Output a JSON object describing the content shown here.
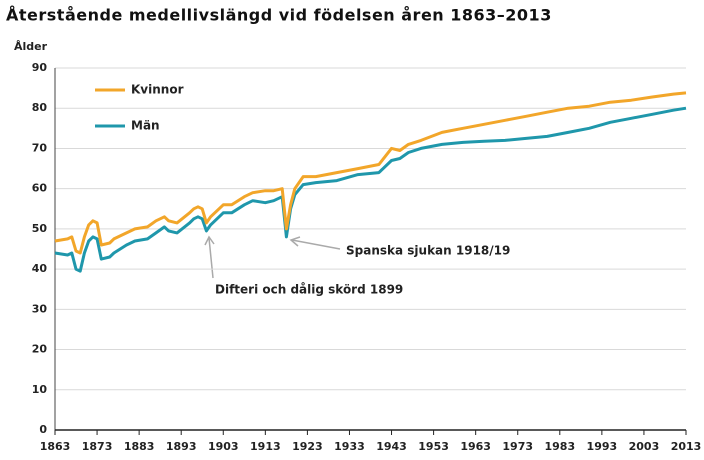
{
  "chart_data": {
    "type": "line",
    "title": "Återstående medellivslängd vid födelsen åren 1863–2013",
    "y_label": "Ålder",
    "x": [
      1863,
      1866,
      1867,
      1868,
      1869,
      1870,
      1871,
      1872,
      1873,
      1874,
      1876,
      1877,
      1880,
      1882,
      1885,
      1887,
      1889,
      1890,
      1892,
      1895,
      1896,
      1897,
      1898,
      1899,
      1900,
      1903,
      1905,
      1908,
      1910,
      1913,
      1915,
      1917,
      1918,
      1919,
      1920,
      1922,
      1925,
      1930,
      1935,
      1940,
      1943,
      1945,
      1947,
      1950,
      1955,
      1960,
      1965,
      1970,
      1975,
      1980,
      1985,
      1990,
      1995,
      2000,
      2005,
      2010,
      2013
    ],
    "series": [
      {
        "name": "Kvinnor",
        "color": "#f2a62a",
        "values": [
          47,
          47.5,
          48,
          44.5,
          44,
          48,
          51,
          52,
          51.5,
          46,
          46.5,
          47.5,
          49,
          50,
          50.5,
          52,
          53,
          52,
          51.5,
          54,
          55,
          55.5,
          55,
          51.5,
          53,
          56,
          56,
          58,
          59,
          59.5,
          59.5,
          60,
          50,
          56,
          60,
          63,
          63,
          64,
          65,
          66,
          70,
          69.5,
          71,
          72,
          74,
          75,
          76,
          77,
          78,
          79,
          80,
          80.5,
          81.5,
          82,
          82.8,
          83.5,
          83.8
        ]
      },
      {
        "name": "Män",
        "color": "#1f97ab",
        "values": [
          44,
          43.5,
          44,
          40,
          39.5,
          44,
          47,
          48,
          47.5,
          42.5,
          43,
          44,
          46,
          47,
          47.5,
          49,
          50.5,
          49.5,
          49,
          51.5,
          52.5,
          53,
          52.5,
          49.5,
          51,
          54,
          54,
          56,
          57,
          56.5,
          57,
          58,
          48,
          55,
          58.5,
          61,
          61.5,
          62,
          63.5,
          64,
          67,
          67.5,
          69,
          70,
          71,
          71.5,
          71.8,
          72,
          72.5,
          73,
          74,
          75,
          76.5,
          77.5,
          78.5,
          79.5,
          80
        ]
      }
    ],
    "annotations": [
      "Spanska sjukan 1918/19",
      "Difteri och dålig skörd 1899"
    ],
    "xlim": [
      1863,
      2013
    ],
    "xticks": [
      1863,
      1873,
      1883,
      1893,
      1903,
      1913,
      1923,
      1933,
      1943,
      1953,
      1963,
      1973,
      1983,
      1993,
      2003,
      2013
    ],
    "ylim": [
      0,
      90
    ],
    "yticks": [
      0,
      10,
      20,
      30,
      40,
      50,
      60,
      70,
      80,
      90
    ],
    "grid": true,
    "legend": "top-left"
  }
}
